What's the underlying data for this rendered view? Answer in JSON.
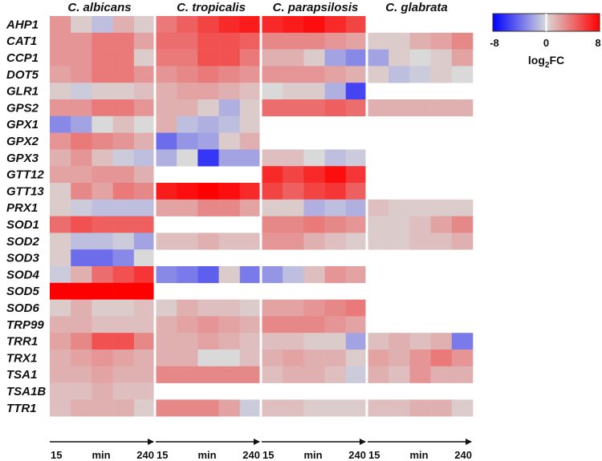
{
  "chart_data": {
    "type": "heatmap",
    "species": [
      "C. albicans",
      "C. tropicalis",
      "C. parapsilosis",
      "C. glabrata"
    ],
    "genes": [
      "AHP1",
      "CAT1",
      "CCP1",
      "DOT5",
      "GLR1",
      "GPS2",
      "GPX1",
      "GPX2",
      "GPX3",
      "GTT12",
      "GTT13",
      "PRX1",
      "SOD1",
      "SOD2",
      "SOD3",
      "SOD4",
      "SOD5",
      "SOD6",
      "TRP99",
      "TRR1",
      "TRX1",
      "TSA1",
      "TSA1B",
      "TTR1"
    ],
    "time_axis": {
      "start": "15",
      "unit": "min",
      "end": "240",
      "points_per_species": 5
    },
    "colorbar": {
      "min": -8,
      "mid": 0,
      "max": 8,
      "min_label": "-8",
      "mid_label": "0",
      "max_label": "8",
      "label_main": "log",
      "label_sub": "2",
      "label_tail": "FC",
      "colors": {
        "low": "#0000ff",
        "mid": "#d9d9d9",
        "high": "#ff0000"
      }
    },
    "data": {
      "C. albicans": [
        [
          2.5,
          0.5,
          -1.0,
          1.5,
          0.5
        ],
        [
          2.5,
          2.5,
          3.5,
          3.5,
          2.0
        ],
        [
          2.5,
          2.5,
          3.5,
          3.5,
          0.5
        ],
        [
          2.0,
          2.5,
          3.5,
          3.5,
          2.5
        ],
        [
          0.5,
          -0.5,
          0.5,
          0.5,
          1.0
        ],
        [
          2.5,
          2.5,
          3.5,
          3.5,
          2.5
        ],
        [
          -3.0,
          -2.0,
          0.0,
          1.0,
          0.0
        ],
        [
          2.5,
          3.5,
          3.0,
          2.5,
          1.5
        ],
        [
          1.5,
          2.5,
          1.0,
          -0.5,
          -1.0
        ],
        [
          2.0,
          2.0,
          2.5,
          2.5,
          1.5
        ],
        [
          0.5,
          3.0,
          2.0,
          3.5,
          3.0
        ],
        [
          0.5,
          -0.5,
          -1.0,
          -1.0,
          -1.0
        ],
        [
          4.0,
          5.0,
          4.5,
          4.5,
          4.5
        ],
        [
          0.5,
          -1.0,
          -1.0,
          -0.5,
          -2.0
        ],
        [
          0.5,
          -4.0,
          -4.0,
          -3.0,
          0.0
        ],
        [
          -0.5,
          1.5,
          4.0,
          5.0,
          6.0
        ],
        [
          8.0,
          8.0,
          8.0,
          8.0,
          8.0
        ],
        [
          0.5,
          1.5,
          0.5,
          0.5,
          1.0
        ],
        [
          1.5,
          1.5,
          1.0,
          1.0,
          1.0
        ],
        [
          2.0,
          3.0,
          5.0,
          5.0,
          3.0
        ],
        [
          1.5,
          2.0,
          2.5,
          2.0,
          1.5
        ],
        [
          1.5,
          1.5,
          2.0,
          1.5,
          1.5
        ],
        [
          1.0,
          1.0,
          1.5,
          1.0,
          1.0
        ],
        [
          1.0,
          1.5,
          1.5,
          1.5,
          0.5
        ]
      ],
      "C. tropicalis": [
        [
          3.5,
          4.5,
          5.5,
          6.5,
          7.0
        ],
        [
          4.0,
          4.0,
          5.0,
          5.0,
          4.5
        ],
        [
          3.5,
          3.5,
          5.0,
          5.0,
          3.5
        ],
        [
          2.5,
          3.0,
          3.5,
          3.0,
          2.5
        ],
        [
          1.5,
          2.0,
          2.0,
          1.5,
          1.0
        ],
        [
          1.5,
          1.5,
          0.5,
          -1.5,
          0.5
        ],
        [
          1.5,
          -1.0,
          -1.5,
          -1.0,
          0.5
        ],
        [
          -4.0,
          -2.5,
          -2.0,
          0.5,
          1.5
        ],
        [
          -1.5,
          0.0,
          -6.0,
          -2.0,
          -2.0
        ],
        null,
        [
          7.0,
          7.5,
          8.0,
          7.5,
          6.5
        ],
        [
          2.0,
          2.0,
          3.0,
          3.0,
          2.0
        ],
        null,
        [
          1.0,
          1.0,
          1.5,
          1.0,
          1.0
        ],
        null,
        [
          -3.0,
          -3.5,
          -4.5,
          0.5,
          -3.5
        ],
        null,
        [
          0.5,
          1.5,
          1.0,
          1.0,
          0.5
        ],
        [
          1.5,
          2.0,
          2.5,
          2.0,
          1.5
        ],
        [
          1.5,
          1.5,
          2.0,
          1.5,
          1.0
        ],
        [
          1.5,
          1.5,
          0.0,
          0.0,
          1.0
        ],
        [
          3.0,
          3.0,
          3.0,
          3.0,
          3.0
        ],
        null,
        [
          3.0,
          3.0,
          3.0,
          2.0,
          -0.5
        ]
      ],
      "C. parapsilosis": [
        [
          6.5,
          7.0,
          7.5,
          6.5,
          5.5
        ],
        [
          3.0,
          3.0,
          3.0,
          2.5,
          2.0
        ],
        [
          1.5,
          1.5,
          0.5,
          -2.0,
          -3.0
        ],
        [
          2.5,
          2.5,
          2.5,
          2.0,
          1.5
        ],
        [
          0.0,
          0.5,
          0.5,
          -1.5,
          -5.5
        ],
        [
          4.0,
          4.0,
          4.0,
          4.5,
          4.0
        ],
        null,
        null,
        [
          1.0,
          1.0,
          0.0,
          -1.0,
          -0.5
        ],
        [
          6.5,
          5.5,
          6.5,
          7.5,
          6.0
        ],
        [
          5.5,
          4.5,
          5.5,
          6.0,
          4.5
        ],
        [
          0.5,
          0.5,
          -1.5,
          -1.0,
          -1.5
        ],
        [
          3.0,
          3.0,
          3.5,
          3.0,
          2.5
        ],
        [
          2.5,
          2.5,
          1.5,
          1.0,
          0.5
        ],
        null,
        [
          -2.5,
          -1.0,
          1.0,
          2.5,
          2.0
        ],
        null,
        [
          2.0,
          2.0,
          2.5,
          3.0,
          3.5
        ],
        [
          3.0,
          3.0,
          3.0,
          2.5,
          2.0
        ],
        [
          1.0,
          1.0,
          0.5,
          0.5,
          -2.0
        ],
        [
          1.5,
          2.0,
          1.5,
          1.5,
          0.5
        ],
        [
          1.0,
          1.5,
          1.5,
          1.0,
          -0.5
        ],
        null,
        [
          1.0,
          1.0,
          0.5,
          0.5,
          0.5
        ]
      ],
      "C. glabrata": [
        null,
        [
          0.5,
          0.5,
          1.5,
          2.0,
          3.0
        ],
        [
          -2.0,
          0.5,
          0.0,
          0.5,
          2.0
        ],
        [
          0.5,
          -1.0,
          -0.5,
          0.5,
          0.0
        ],
        null,
        [
          1.5,
          1.5,
          1.5,
          1.5,
          1.5
        ],
        null,
        null,
        null,
        null,
        null,
        [
          1.0,
          0.5,
          0.5,
          0.5,
          0.5
        ],
        [
          0.5,
          0.5,
          1.0,
          2.0,
          3.0
        ],
        [
          0.5,
          0.5,
          1.0,
          1.0,
          1.5
        ],
        null,
        null,
        null,
        null,
        null,
        [
          1.0,
          1.5,
          1.0,
          1.5,
          -3.5
        ],
        [
          2.0,
          1.5,
          2.5,
          3.5,
          2.5
        ],
        [
          1.5,
          1.0,
          2.5,
          1.5,
          1.5
        ],
        null,
        [
          1.0,
          1.0,
          1.5,
          1.5,
          0.5
        ]
      ]
    }
  }
}
